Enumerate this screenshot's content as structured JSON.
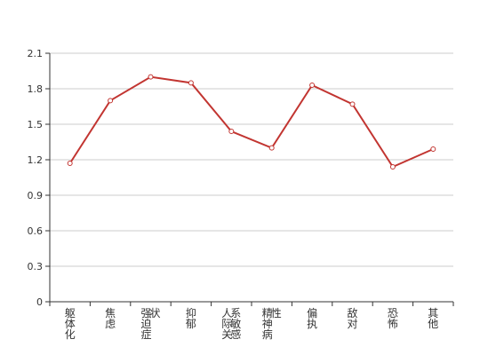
{
  "chart_data": {
    "type": "line",
    "title": "",
    "xlabel": "",
    "ylabel": "",
    "categories": [
      "躯体化",
      "焦虑",
      "强迫症状",
      "抑郁",
      "人际关系敏感",
      "精神病性",
      "偏执",
      "敌对",
      "恐怖",
      "其他"
    ],
    "series": [
      {
        "values": [
          1.17,
          1.7,
          1.9,
          1.85,
          1.44,
          1.3,
          1.83,
          1.67,
          1.14,
          1.29
        ]
      }
    ],
    "ylim": [
      0,
      2.1
    ],
    "yticks": [
      "0",
      "0.3",
      "0.6",
      "0.9",
      "1.2",
      "1.5",
      "1.8",
      "2.1"
    ],
    "grid": "horizontal",
    "legend": "none",
    "colors": {
      "line": "#c23531",
      "axis": "#333333",
      "grid": "#cccccc"
    }
  }
}
